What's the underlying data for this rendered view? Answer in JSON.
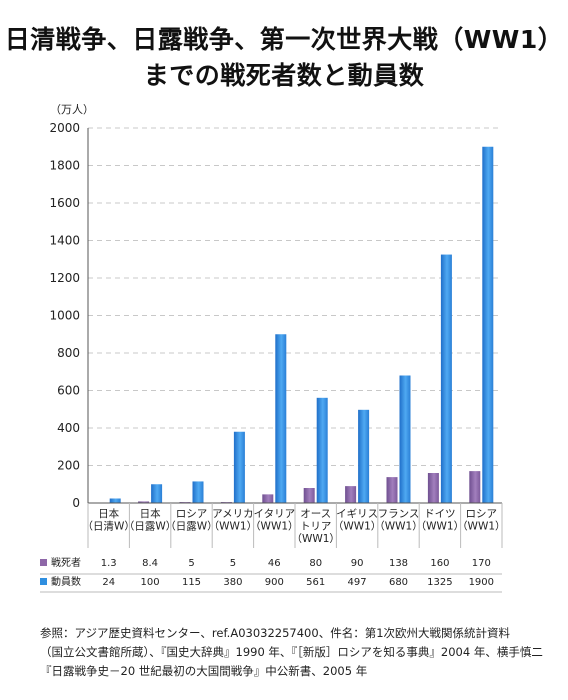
{
  "title_line1": "日清戦争、日露戦争、第一次世界大戦（WW1）",
  "title_line2": "までの戦死者数と動員数",
  "unit_label": "（万人）",
  "source_lines": [
    "参照：アジア歴史資料センター、ref.A03032257400、件名：第1次欧州大戦関係統計資料",
    "（国立公文書館所蔵）、『国史大辞典』1990 年、『［新版］ロシアを知る事典』2004 年、横手慎二",
    "『日露戦争史－20 世紀最初の大国間戦争』中公新書、2005 年"
  ],
  "colors": {
    "deaths": "#8e67a8",
    "mobilized": "#2f8fe0",
    "grid": "#c8c8c8"
  },
  "chart_data": {
    "type": "bar",
    "ylim": [
      0,
      2000
    ],
    "yticks": [
      0,
      200,
      400,
      600,
      800,
      1000,
      1200,
      1400,
      1600,
      1800,
      2000
    ],
    "grid": true,
    "categories": [
      [
        "日本",
        "（日清W）"
      ],
      [
        "日本",
        "（日露W）"
      ],
      [
        "ロシア",
        "（日露W）"
      ],
      [
        "アメリカ",
        "（WW1）"
      ],
      [
        "イタリア",
        "（WW1）"
      ],
      [
        "オース",
        "トリア",
        "（WW1）"
      ],
      [
        "イギリス",
        "（WW1）"
      ],
      [
        "フランス",
        "（WW1）"
      ],
      [
        "ドイツ",
        "（WW1）"
      ],
      [
        "ロシア",
        "（WW1）"
      ]
    ],
    "series": [
      {
        "name": "戦死者",
        "values": [
          1.3,
          8.4,
          5,
          5,
          46,
          80,
          90,
          138,
          160,
          170
        ],
        "labels": [
          "1.3",
          "8.4",
          "5",
          "5",
          "46",
          "80",
          "90",
          "138",
          "160",
          "170"
        ]
      },
      {
        "name": "動員数",
        "values": [
          24,
          100,
          115,
          380,
          900,
          561,
          497,
          680,
          1325,
          1900
        ],
        "labels": [
          "24",
          "100",
          "115",
          "380",
          "900",
          "561",
          "497",
          "680",
          "1325",
          "1900"
        ]
      }
    ]
  }
}
